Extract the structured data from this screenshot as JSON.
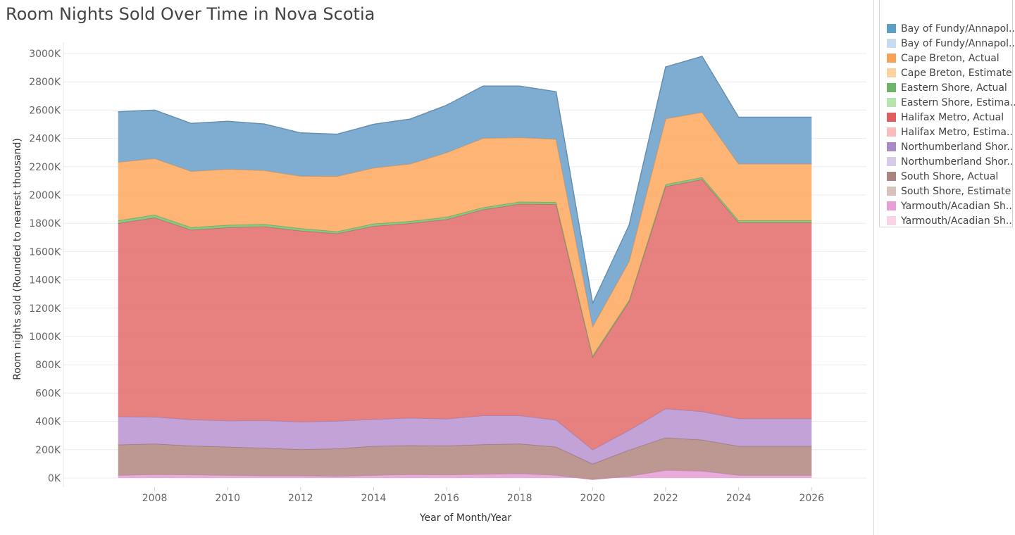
{
  "title": "Room Nights Sold Over Time in Nova Scotia",
  "chart_data": {
    "type": "area",
    "stacked": true,
    "x": [
      2007,
      2008,
      2009,
      2010,
      2011,
      2012,
      2013,
      2014,
      2015,
      2016,
      2017,
      2018,
      2019,
      2020,
      2021,
      2022,
      2023,
      2024,
      2025,
      2026
    ],
    "xlabel": "Year of Month/Year",
    "ylabel": "Room nights sold (Rounded to nearest thousand)",
    "xlim": [
      2005.5,
      2027.5
    ],
    "ylim": [
      -50,
      3000
    ],
    "xticks": [
      2008,
      2010,
      2012,
      2014,
      2016,
      2018,
      2020,
      2022,
      2024,
      2026
    ],
    "yticks": [
      0,
      200,
      400,
      600,
      800,
      1000,
      1200,
      1400,
      1600,
      1800,
      2000,
      2200,
      2400,
      2600,
      2800,
      3000
    ],
    "ytick_labels": [
      "0K",
      "200K",
      "400K",
      "600K",
      "800K",
      "1000K",
      "1200K",
      "1400K",
      "1600K",
      "1800K",
      "2000K",
      "2200K",
      "2400K",
      "2600K",
      "2800K",
      "3000K"
    ],
    "grid": true,
    "legend_position": "right",
    "series": [
      {
        "name": "Yarmouth/Acadian Shores, Actual",
        "color": "#e9a5d8",
        "values": [
          20,
          25,
          23,
          20,
          17,
          17,
          13,
          20,
          25,
          23,
          27,
          32,
          20,
          -10,
          13,
          55,
          50,
          20,
          20,
          20
        ]
      },
      {
        "name": "South Shore, Actual",
        "color": "#b9918b",
        "values": [
          215,
          217,
          205,
          200,
          195,
          185,
          195,
          205,
          205,
          205,
          210,
          210,
          200,
          110,
          185,
          230,
          220,
          205,
          205,
          205
        ]
      },
      {
        "name": "Northumberland Shore, Actual",
        "color": "#c09dd6",
        "values": [
          200,
          190,
          185,
          185,
          195,
          195,
          195,
          190,
          195,
          190,
          205,
          200,
          190,
          100,
          140,
          205,
          200,
          195,
          195,
          195
        ]
      },
      {
        "name": "Halifax Metro, Actual",
        "color": "#e57a79",
        "values": [
          1365,
          1408,
          1340,
          1365,
          1370,
          1350,
          1325,
          1365,
          1375,
          1410,
          1455,
          1495,
          1525,
          655,
          910,
          1570,
          1640,
          1385,
          1385,
          1385
        ]
      },
      {
        "name": "Eastern Shore, Actual",
        "color": "#80c77c",
        "values": [
          20,
          20,
          18,
          18,
          17,
          17,
          15,
          17,
          15,
          17,
          15,
          15,
          15,
          10,
          10,
          15,
          15,
          15,
          15,
          15
        ]
      },
      {
        "name": "Cape Breton, Actual",
        "color": "#fdb06e",
        "values": [
          413,
          398,
          397,
          395,
          380,
          370,
          390,
          395,
          405,
          455,
          490,
          455,
          445,
          205,
          275,
          465,
          460,
          400,
          400,
          400
        ]
      },
      {
        "name": "Bay of Fundy/Annapolis Valley, Actual",
        "color": "#78a9cf",
        "values": [
          355,
          342,
          338,
          338,
          328,
          305,
          297,
          308,
          317,
          335,
          368,
          363,
          335,
          165,
          255,
          365,
          395,
          330,
          330,
          330
        ]
      }
    ]
  },
  "legend": [
    {
      "label": "Bay of Fundy/Annapol..",
      "color": "#5d9ec7"
    },
    {
      "label": "Bay of Fundy/Annapol..",
      "color": "#c7dcf0"
    },
    {
      "label": "Cape Breton, Actual",
      "color": "#f8a259"
    },
    {
      "label": "Cape Breton, Estimate",
      "color": "#fdd2a0"
    },
    {
      "label": "Eastern Shore, Actual",
      "color": "#6ab56a"
    },
    {
      "label": "Eastern Shore, Estima..",
      "color": "#b7e3ad"
    },
    {
      "label": "Halifax Metro, Actual",
      "color": "#e15e5f"
    },
    {
      "label": "Halifax Metro, Estima..",
      "color": "#fabbbb"
    },
    {
      "label": "Northumberland Shor..",
      "color": "#a98ac8"
    },
    {
      "label": "Northumberland Shor..",
      "color": "#d7cbe7"
    },
    {
      "label": "South Shore, Actual",
      "color": "#aa847d"
    },
    {
      "label": "South Shore, Estimate",
      "color": "#d8c2bc"
    },
    {
      "label": "Yarmouth/Acadian Sh..",
      "color": "#e89fd5"
    },
    {
      "label": "Yarmouth/Acadian Sh..",
      "color": "#f8d4e8"
    }
  ]
}
